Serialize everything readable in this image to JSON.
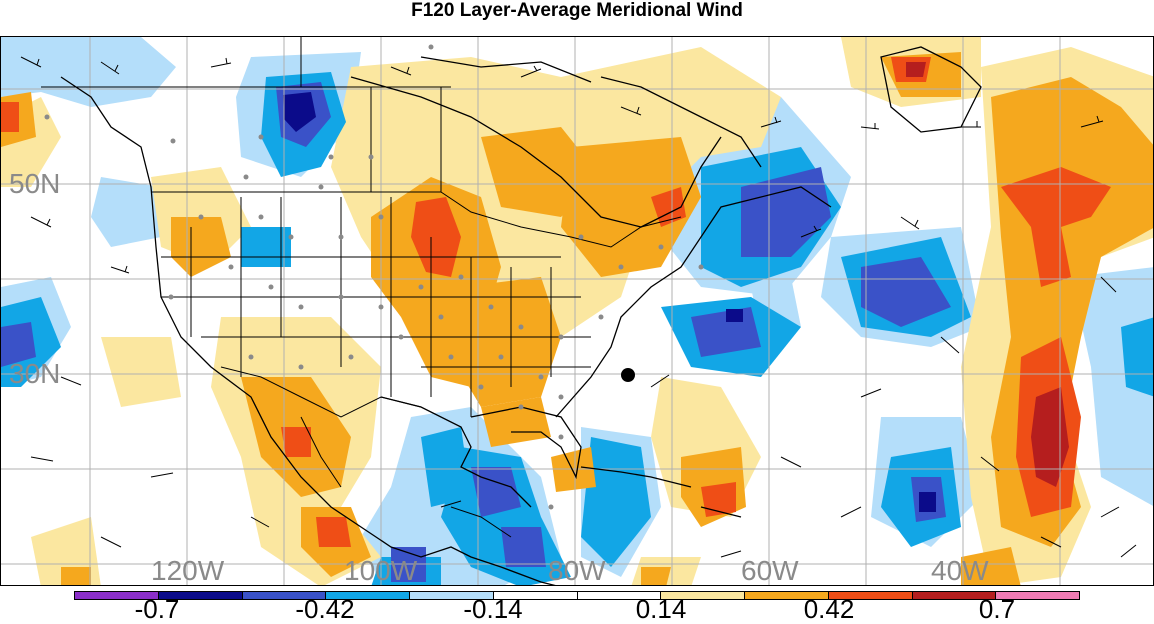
{
  "title": "F120 Layer-Average Meridional Wind",
  "map": {
    "lat_labels": [
      "50N",
      "30N"
    ],
    "lon_labels": [
      "120W",
      "100W",
      "80W",
      "60W",
      "40W"
    ],
    "marker": "black-dot"
  },
  "colorbar": {
    "colors": [
      "#8b2fc9",
      "#0b0b8a",
      "#3a52c8",
      "#12a6e6",
      "#b4defa",
      "#ffffff",
      "#ffffff",
      "#fbe7a0",
      "#f5a81e",
      "#ef4e16",
      "#b51e1e",
      "#f07cb4"
    ],
    "ticks": [
      "-0.7",
      "-0.42",
      "-0.14",
      "0.14",
      "0.42",
      "0.7"
    ],
    "levels": [
      -0.84,
      -0.7,
      -0.56,
      -0.42,
      -0.28,
      -0.14,
      0,
      0.14,
      0.28,
      0.42,
      0.56,
      0.7,
      0.84
    ]
  },
  "legend_names": {
    "neg_deep": "#0b0b8a",
    "neg_mid": "#3a52c8",
    "neg_light": "#12a6e6",
    "neg_pale": "#b4defa",
    "pos_pale": "#fbe7a0",
    "pos_light": "#f5a81e",
    "pos_mid": "#ef4e16",
    "pos_deep": "#b51e1e"
  }
}
